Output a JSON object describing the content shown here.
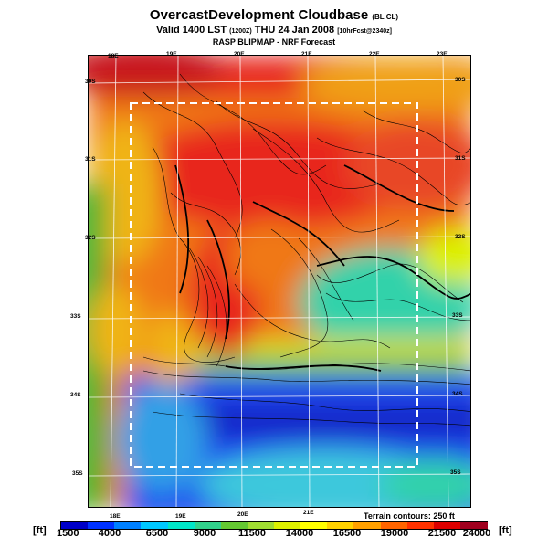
{
  "header": {
    "title": "OvercastDevelopment Cloudbase",
    "title_suffix": "(BL CL)",
    "valid_main": "Valid 1400 LST",
    "valid_code": "(1200Z)",
    "valid_date": "THU 24 Jan 2008",
    "valid_run": "[10hrFcst@2340z]",
    "subtitle": "RASP BLIPMAP - NRF Forecast"
  },
  "map": {
    "top_lon_labels": [
      "18E",
      "19E",
      "20E",
      "21E",
      "22E",
      "23E"
    ],
    "bottom_lon_labels": [
      "18E",
      "19E",
      "20E",
      "21E"
    ],
    "left_lat_labels": [
      "30S",
      "31S",
      "32S",
      "33S",
      "34S",
      "35S"
    ],
    "right_lat_labels": [
      "30S",
      "31S",
      "32S",
      "33S",
      "34S",
      "35S"
    ],
    "terrain_note": "Terrain contours: 250 ft"
  },
  "colorbar": {
    "unit": "[ft]",
    "labels": [
      "1500",
      "4000",
      "6500",
      "9000",
      "11500",
      "14000",
      "16500",
      "19000",
      "21500",
      "24000"
    ],
    "colors": [
      "#0000c8",
      "#0032ff",
      "#0080ff",
      "#00c8ff",
      "#00e6c8",
      "#32d28c",
      "#64c832",
      "#a0dc32",
      "#dcf000",
      "#ffff00",
      "#ffd200",
      "#ffa000",
      "#ff6400",
      "#ff3200",
      "#dc0000",
      "#a0001e"
    ]
  },
  "legend_colors": {
    "land_red": "#e8281e",
    "orange": "#f07814",
    "yellow_orange": "#f0b414",
    "cyan": "#32d2aa",
    "blue": "#1e46f0",
    "deep_blue": "#1428c8",
    "green": "#3cb432"
  }
}
